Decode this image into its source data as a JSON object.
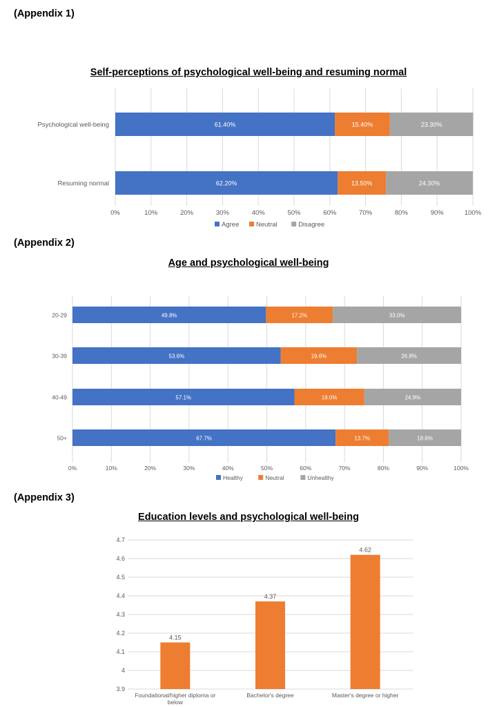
{
  "appendix_labels": [
    "(Appendix 1)",
    "(Appendix 2)",
    "(Appendix 3)"
  ],
  "colors": {
    "blue": "#4472c4",
    "orange": "#ed7d31",
    "gray": "#a5a5a5",
    "grid": "#d9d9d9",
    "axis_text": "#595959"
  },
  "chart_data": [
    {
      "type": "bar",
      "orientation": "horizontal",
      "stacked": true,
      "title": "Self-perceptions of psychological well-being and resuming normal",
      "categories": [
        "Psychological well-being",
        "Resuming normal"
      ],
      "series": [
        {
          "name": "Agree",
          "values": [
            61.4,
            62.2
          ],
          "labels": [
            "61.40%",
            "62.20%"
          ]
        },
        {
          "name": "Neutral",
          "values": [
            15.4,
            13.5
          ],
          "labels": [
            "15.40%",
            "13.50%"
          ]
        },
        {
          "name": "Disagree",
          "values": [
            23.3,
            24.3
          ],
          "labels": [
            "23.30%",
            "24.30%"
          ]
        }
      ],
      "xlim": [
        0,
        100
      ],
      "xticks": [
        "0%",
        "10%",
        "20%",
        "30%",
        "40%",
        "50%",
        "60%",
        "70%",
        "80%",
        "90%",
        "100%"
      ],
      "grid": true,
      "legend": "bottom"
    },
    {
      "type": "bar",
      "orientation": "horizontal",
      "stacked": true,
      "title": "Age and psychological well-being",
      "categories": [
        "20-29",
        "30-39",
        "40-49",
        "50+"
      ],
      "series": [
        {
          "name": "Healthy",
          "values": [
            49.8,
            53.6,
            57.1,
            67.7
          ],
          "labels": [
            "49.8%",
            "53.6%",
            "57.1%",
            "67.7%"
          ]
        },
        {
          "name": "Neutral",
          "values": [
            17.2,
            19.6,
            18.0,
            13.7
          ],
          "labels": [
            "17.2%",
            "19.6%",
            "18.0%",
            "13.7%"
          ]
        },
        {
          "name": "Unhealthy",
          "values": [
            33.0,
            26.8,
            24.9,
            18.6
          ],
          "labels": [
            "33.0%",
            "26.8%",
            "24.9%",
            "18.6%"
          ]
        }
      ],
      "xlim": [
        0,
        100
      ],
      "xticks": [
        "0%",
        "10%",
        "20%",
        "30%",
        "40%",
        "50%",
        "60%",
        "70%",
        "80%",
        "90%",
        "100%"
      ],
      "grid": true,
      "legend": "bottom"
    },
    {
      "type": "bar",
      "orientation": "vertical",
      "title": "Education levels and psychological well-being",
      "categories": [
        "Foundational/higher diploma or below",
        "Bachelor's degree",
        "Master's degree or higher"
      ],
      "values": [
        4.15,
        4.37,
        4.62
      ],
      "labels": [
        "4.15",
        "4.37",
        "4.62"
      ],
      "ylim": [
        3.9,
        4.7
      ],
      "yticks": [
        "3.9",
        "4",
        "4.1",
        "4.2",
        "4.3",
        "4.4",
        "4.5",
        "4.6",
        "4.7"
      ],
      "grid": true
    }
  ]
}
